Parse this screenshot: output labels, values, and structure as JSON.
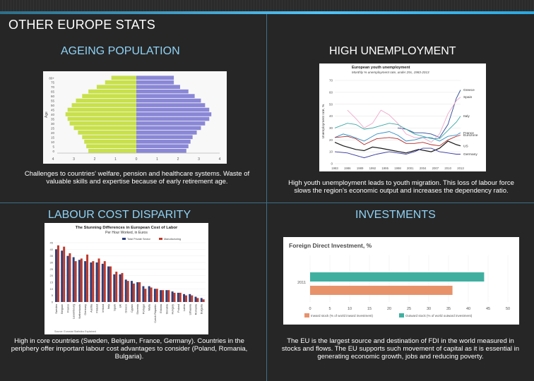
{
  "slide": {
    "title": "OTHER EUROPE STATS"
  },
  "sections": {
    "ageing": {
      "heading": "AGEING POPULATION",
      "caption": "Challenges to countries' welfare, pension and healthcare systems. Waste of valuable skills and expertise because of early retirement age."
    },
    "unemployment": {
      "heading": "HIGH UNEMPLOYMENT",
      "caption": "High youth unemployment leads to youth migration. This loss of labour force slows the region's economic output and increases the dependency ratio."
    },
    "labour": {
      "heading": "LABOUR COST DISPARITY",
      "caption": "High in core countries (Sweden, Belgium, France, Germany). Countries in the periphery offer important labour cost advantages to consider (Poland, Romania, Bulgaria)."
    },
    "investments": {
      "heading": "INVESTMENTS",
      "caption": "The EU is the largest source and destination of FDI in the world measured in stocks and flows. The EU supports such movement of capital as it is essential in generating economic growth, jobs and reducing poverty."
    }
  },
  "chart_data": [
    {
      "type": "bar",
      "subtype": "population-pyramid",
      "ylabel": "Age",
      "categories": [
        "0",
        "5",
        "10",
        "15",
        "20",
        "25",
        "30",
        "35",
        "40",
        "45",
        "50",
        "55",
        "60",
        "65",
        "70",
        "75",
        "80+"
      ],
      "x_ticks": [
        "4",
        "3",
        "2",
        "1",
        "0",
        "1",
        "2",
        "3",
        "4"
      ],
      "series": [
        {
          "color": "#c8e04a",
          "values": [
            2.3,
            2.4,
            2.5,
            2.6,
            2.8,
            3.0,
            3.2,
            3.3,
            3.4,
            3.3,
            3.1,
            2.9,
            2.6,
            2.3,
            1.9,
            1.5,
            1.2
          ]
        },
        {
          "color": "#8a87d6",
          "values": [
            2.4,
            2.5,
            2.6,
            2.7,
            2.9,
            3.1,
            3.3,
            3.5,
            3.6,
            3.5,
            3.3,
            3.1,
            2.8,
            2.5,
            2.1,
            1.8,
            1.8
          ]
        }
      ]
    },
    {
      "type": "line",
      "title": "European youth unemployment",
      "subtitle": "Monthly % unemployment rate, under 25s, 1983-2013",
      "ylabel": "Unemployment rate, %",
      "ylim": [
        0,
        70
      ],
      "y_ticks": [
        "0",
        "10",
        "20",
        "30",
        "40",
        "50",
        "60",
        "70"
      ],
      "x_ticks": [
        "1983",
        "1986",
        "1989",
        "1992",
        "1995",
        "1998",
        "2001",
        "2004",
        "2007",
        "2010",
        "2013"
      ],
      "series": [
        {
          "name": "Greece",
          "color": "#2e4a9a",
          "x": [
            1998,
            2000,
            2002,
            2004,
            2006,
            2008,
            2010,
            2012,
            2013
          ],
          "values": [
            30,
            29,
            26,
            26,
            25,
            22,
            33,
            55,
            62
          ]
        },
        {
          "name": "Spain",
          "color": "#f0a8c8",
          "x": [
            1986,
            1988,
            1990,
            1992,
            1994,
            1996,
            1998,
            2000,
            2002,
            2004,
            2006,
            2008,
            2010,
            2012,
            2013
          ],
          "values": [
            45,
            38,
            30,
            34,
            45,
            41,
            34,
            25,
            22,
            22,
            18,
            25,
            42,
            53,
            56
          ]
        },
        {
          "name": "Italy",
          "color": "#3aa8a4",
          "x": [
            1983,
            1986,
            1988,
            1990,
            1992,
            1994,
            1996,
            1998,
            2000,
            2002,
            2004,
            2006,
            2008,
            2010,
            2012,
            2013
          ],
          "values": [
            30,
            34,
            33,
            29,
            30,
            32,
            34,
            33,
            29,
            25,
            23,
            21,
            21,
            28,
            35,
            40
          ]
        },
        {
          "name": "France",
          "color": "#2f8dc4",
          "x": [
            1983,
            1985,
            1987,
            1990,
            1993,
            1996,
            1998,
            2000,
            2002,
            2004,
            2006,
            2008,
            2010,
            2012,
            2013
          ],
          "values": [
            22,
            25,
            23,
            19,
            25,
            27,
            24,
            19,
            20,
            22,
            22,
            19,
            23,
            24,
            26
          ]
        },
        {
          "name": "Eurozone",
          "color": "#b52828",
          "x": [
            1983,
            1986,
            1988,
            1990,
            1993,
            1996,
            1998,
            2000,
            2002,
            2004,
            2006,
            2008,
            2010,
            2012,
            2013
          ],
          "values": [
            22,
            23,
            21,
            16,
            21,
            22,
            21,
            17,
            17,
            18,
            16,
            15,
            20,
            23,
            24
          ]
        },
        {
          "name": "US",
          "color": "#1a1a1a",
          "x": [
            1983,
            1985,
            1988,
            1990,
            1992,
            1994,
            1997,
            2000,
            2003,
            2006,
            2008,
            2010,
            2012,
            2013
          ],
          "values": [
            18,
            15,
            12,
            11,
            14,
            13,
            11,
            9,
            12,
            10,
            13,
            19,
            16,
            15
          ]
        },
        {
          "name": "Germany",
          "color": "#3a3aa0",
          "x": [
            1983,
            1986,
            1990,
            1993,
            1996,
            1998,
            2000,
            2002,
            2004,
            2006,
            2008,
            2010,
            2012,
            2013
          ],
          "values": [
            10,
            9,
            5,
            8,
            10,
            9,
            8,
            10,
            13,
            13,
            10,
            9,
            8,
            8
          ]
        }
      ]
    },
    {
      "type": "bar",
      "title": "The Stunning Differences in European Cost of Labor",
      "subtitle": "Per Hour Worked, in Euros",
      "legend": [
        "Total Private Sector",
        "Manufacturing"
      ],
      "ylim": [
        0,
        45
      ],
      "y_ticks": [
        "0",
        "5",
        "10",
        "15",
        "20",
        "25",
        "30",
        "35",
        "40",
        "45"
      ],
      "source": "Source: Eurostat Statistics Explained",
      "categories": [
        "Sweden",
        "Belgium",
        "France",
        "Luxembourg",
        "Netherlands",
        "Germany",
        "Austria",
        "Finland",
        "Ireland",
        "Italy",
        "Spain",
        "UK",
        "Greece",
        "Cyprus",
        "Slovenia",
        "Portugal",
        "Malta",
        "Czech Republic",
        "Estonia",
        "Slovakia",
        "Hungary",
        "Poland",
        "Latvia",
        "Lithuania",
        "Romania",
        "Bulgaria"
      ],
      "series": [
        {
          "name": "Total Private Sector",
          "color": "#2d3f7a",
          "values": [
            40,
            39,
            35,
            34,
            32,
            31,
            30,
            30,
            29,
            27,
            21,
            21,
            17,
            16,
            15,
            12,
            12,
            10,
            9,
            9,
            8,
            7,
            6,
            6,
            4,
            3
          ]
        },
        {
          "name": "Manufacturing",
          "color": "#c0392b",
          "values": [
            43,
            42,
            37,
            31,
            33,
            36,
            31,
            33,
            31,
            27,
            23,
            22,
            16,
            14,
            15,
            10,
            11,
            10,
            9,
            9,
            7,
            7,
            5,
            5,
            3,
            2
          ]
        }
      ]
    },
    {
      "type": "bar",
      "orientation": "horizontal",
      "title": "Foreign Direct Investment, %",
      "categories": [
        "2011"
      ],
      "xlim": [
        0,
        50
      ],
      "x_ticks": [
        "0",
        "5",
        "10",
        "15",
        "20",
        "25",
        "30",
        "35",
        "40",
        "45",
        "50"
      ],
      "series": [
        {
          "name": "Outward stock (% of world outward investment)",
          "color": "#3fb0a0",
          "values": [
            44
          ]
        },
        {
          "name": "Inward stock (% of world inward investment)",
          "color": "#e8926a",
          "values": [
            36
          ]
        }
      ],
      "legend": [
        "Inward stock (% of world inward investment)",
        "Outward stock (% of world outward investment)"
      ]
    }
  ]
}
